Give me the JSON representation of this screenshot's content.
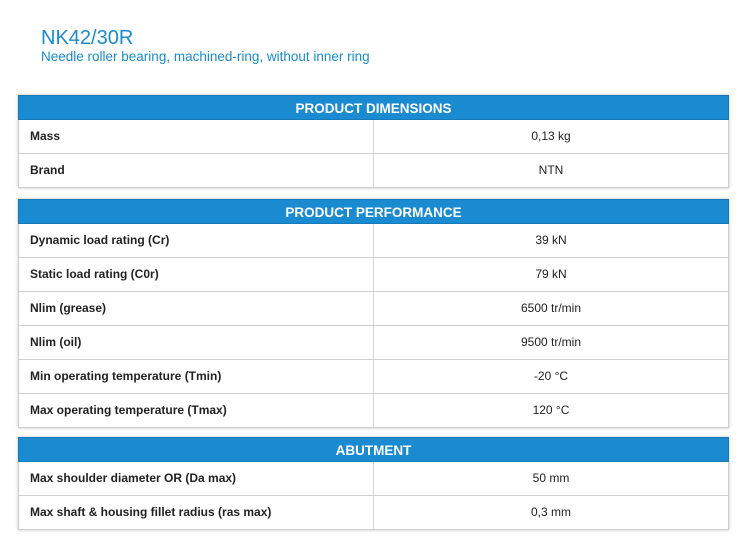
{
  "product": {
    "title": "NK42/30R",
    "subtitle": "Needle roller bearing, machined-ring, without inner ring"
  },
  "sections": [
    {
      "title": "PRODUCT DIMENSIONS",
      "rows": [
        {
          "label": "Mass",
          "value": "0,13 kg"
        },
        {
          "label": "Brand",
          "value": "NTN"
        }
      ]
    },
    {
      "title": "PRODUCT PERFORMANCE",
      "rows": [
        {
          "label": "Dynamic load rating (Cr)",
          "value": "39 kN"
        },
        {
          "label": "Static load rating (C0r)",
          "value": "79 kN"
        },
        {
          "label": "Nlim (grease)",
          "value": "6500 tr/min"
        },
        {
          "label": "Nlim (oil)",
          "value": "9500 tr/min"
        },
        {
          "label": "Min operating temperature (Tmin)",
          "value": "-20 °C"
        },
        {
          "label": "Max operating temperature (Tmax)",
          "value": "120 °C"
        }
      ]
    },
    {
      "title": "ABUTMENT",
      "rows": [
        {
          "label": "Max shoulder diameter OR (Da max)",
          "value": "50 mm"
        },
        {
          "label": "Max shaft & housing fillet radius (ras max)",
          "value": "0,3 mm"
        }
      ]
    }
  ],
  "colors": {
    "accent": "#1a8bd0",
    "header_text": "#ffffff",
    "body_text": "#222222",
    "border": "#cfcfcf"
  }
}
